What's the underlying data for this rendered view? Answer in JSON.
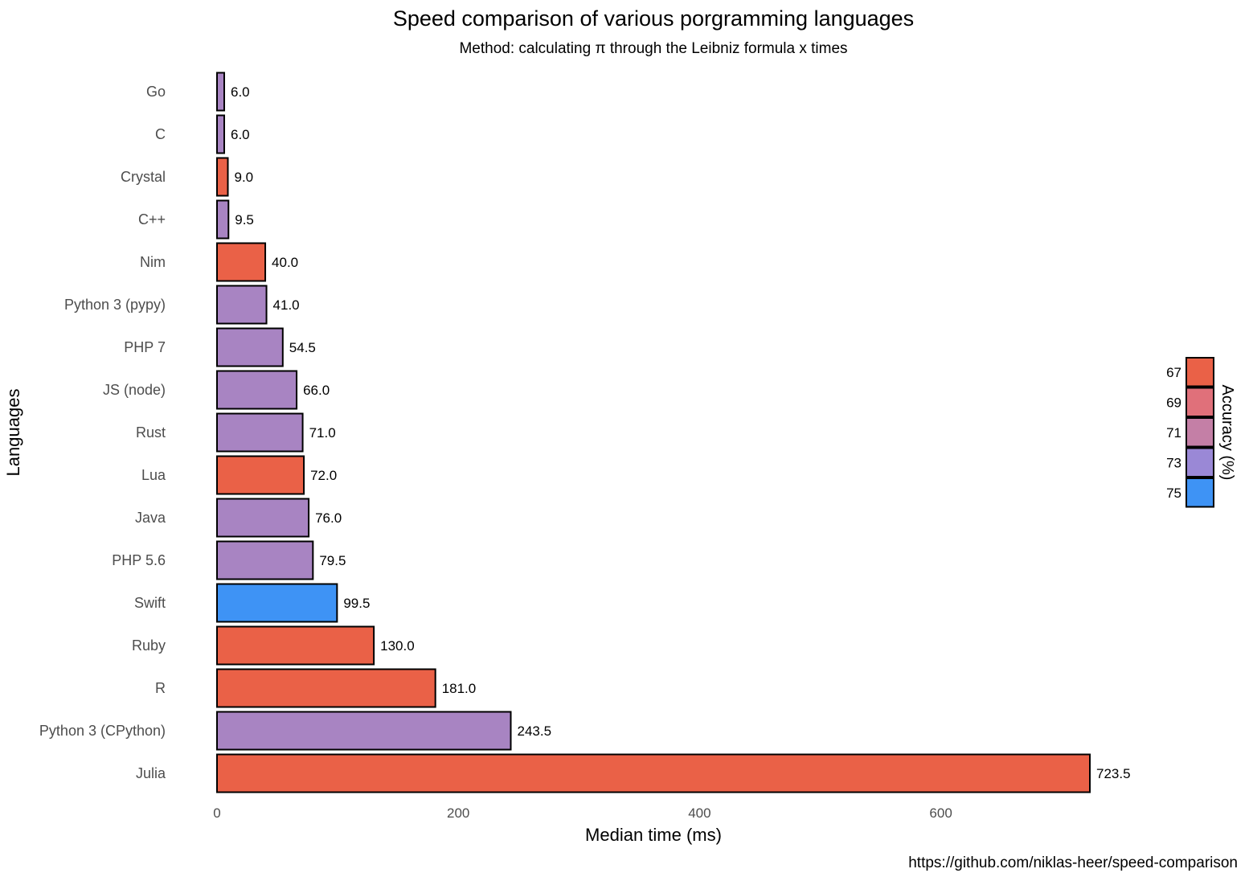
{
  "chart_data": {
    "type": "bar",
    "orientation": "horizontal",
    "title": "Speed comparison of various porgramming languages",
    "subtitle": "Method: calculating π through the Leibniz formula x times",
    "xlabel": "Median time (ms)",
    "ylabel": "Languages",
    "xlim": [
      0,
      723.5
    ],
    "xticks": [
      0,
      200,
      400,
      600
    ],
    "tick_labels": [
      "0",
      "200",
      "400",
      "600"
    ],
    "grid": false,
    "caption": "https://github.com/niklas-heer/speed-comparison",
    "categories": [
      "Go",
      "C",
      "Crystal",
      "C++",
      "Nim",
      "Python 3 (pypy)",
      "PHP 7",
      "JS (node)",
      "Rust",
      "Lua",
      "Java",
      "PHP 5.6",
      "Swift",
      "Ruby",
      "R",
      "Python 3 (CPython)",
      "Julia"
    ],
    "values": [
      6.0,
      6.0,
      9.0,
      9.5,
      40.0,
      41.0,
      54.5,
      66.0,
      71.0,
      72.0,
      76.0,
      79.5,
      99.5,
      130.0,
      181.0,
      243.5,
      723.5
    ],
    "value_labels": [
      "6.0",
      "6.0",
      "9.0",
      "9.5",
      "40.0",
      "41.0",
      "54.5",
      "66.0",
      "71.0",
      "72.0",
      "76.0",
      "79.5",
      "99.5",
      "130.0",
      "181.0",
      "243.5",
      "723.5"
    ],
    "accuracy": [
      73,
      73,
      67,
      73,
      67,
      73,
      73,
      73,
      73,
      67,
      73,
      73,
      75,
      67,
      67,
      73,
      67
    ],
    "legend": {
      "title": "Accuracy (%)",
      "position": "right",
      "entries": [
        {
          "label": "67",
          "value": 67,
          "color": "#EA6147"
        },
        {
          "label": "69",
          "value": 69,
          "color": "#E0707A"
        },
        {
          "label": "71",
          "value": 71,
          "color": "#C47FA6"
        },
        {
          "label": "73",
          "value": 73,
          "color": "#9A88D6"
        },
        {
          "label": "75",
          "value": 75,
          "color": "#3E93F5"
        }
      ]
    },
    "bar_colors": {
      "67": "#EA6147",
      "73": "#A884C2",
      "75": "#3E93F5"
    }
  }
}
